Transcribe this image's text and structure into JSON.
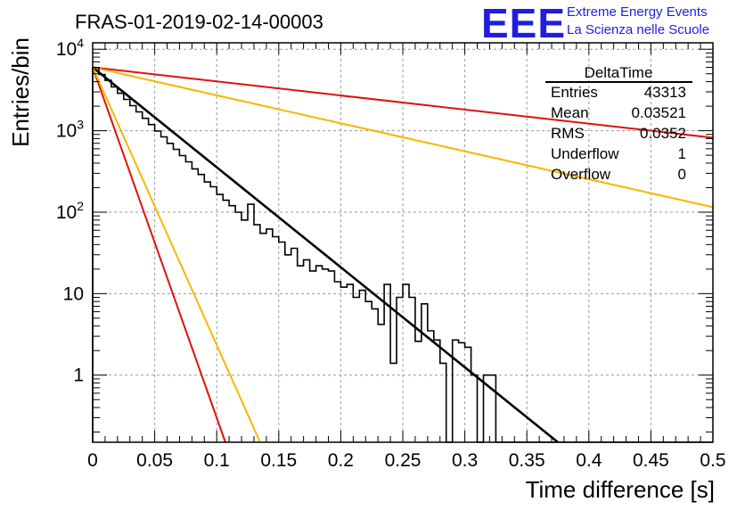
{
  "title": "FRAS-01-2019-02-14-00003",
  "logo": {
    "letters": "EEE",
    "line1": "Extreme Energy Events",
    "line2": "La Scienza nelle Scuole"
  },
  "stats_box": {
    "name": "DeltaTime",
    "rows": [
      {
        "label": "Entries",
        "value": "43313"
      },
      {
        "label": "Mean",
        "value": "0.03521"
      },
      {
        "label": "RMS",
        "value": "0.0352"
      },
      {
        "label": "Underflow",
        "value": "1"
      },
      {
        "label": "Overflow",
        "value": "0"
      }
    ]
  },
  "colors": {
    "histogram": "#000000",
    "red": "#e01010",
    "yellow": "#f5b800",
    "fit": "#000000",
    "logo": "#1f1ee0",
    "grid": "#999999"
  },
  "chart_data": {
    "type": "line",
    "title": "FRAS-01-2019-02-14-00003",
    "xlabel": "Time difference [s]",
    "ylabel": "Entries/bin",
    "xlim": [
      0,
      0.5
    ],
    "ylim": [
      0.15,
      12000
    ],
    "ylog": true,
    "grid": true,
    "legend": "top-right",
    "x_ticks": [
      0,
      0.05,
      0.1,
      0.15,
      0.2,
      0.25,
      0.3,
      0.35,
      0.4,
      0.45,
      0.5
    ],
    "x_tick_labels": [
      "0",
      "0.05",
      "0.1",
      "0.15",
      "0.2",
      "0.25",
      "0.3",
      "0.35",
      "0.4",
      "0.45",
      "0.5"
    ],
    "y_ticks": [
      1,
      10,
      100,
      1000,
      10000
    ],
    "y_tick_labels": [
      {
        "base": "1",
        "exp": ""
      },
      {
        "base": "10",
        "exp": ""
      },
      {
        "base": "10",
        "exp": "2"
      },
      {
        "base": "10",
        "exp": "3"
      },
      {
        "base": "10",
        "exp": "4"
      }
    ],
    "histogram": {
      "bin_width": 0.005,
      "x_start": 0,
      "values": [
        5950,
        4900,
        4150,
        3450,
        2880,
        2420,
        2030,
        1700,
        1420,
        1190,
        990,
        840,
        700,
        590,
        495,
        415,
        340,
        290,
        235,
        205,
        165,
        140,
        120,
        100,
        80,
        125,
        70,
        55,
        62,
        50,
        43,
        30,
        36,
        22,
        26,
        19,
        22,
        20,
        19,
        14,
        12,
        13,
        9,
        11,
        8,
        6.5,
        4.2,
        13,
        1.4,
        9,
        13,
        9,
        2.6,
        7.5,
        3.5,
        2.7,
        1.4,
        0,
        2.7,
        2.5,
        2.2,
        1.0,
        0,
        1.0,
        1.0,
        0,
        0,
        0,
        0,
        0,
        0,
        0,
        0,
        0,
        0,
        0,
        0,
        0,
        0,
        0,
        0,
        0,
        0,
        0,
        0,
        0,
        0,
        0,
        0,
        0,
        0,
        0,
        0,
        0,
        0,
        0,
        0,
        0,
        0,
        0
      ]
    },
    "series": [
      {
        "color": "#000000",
        "x": [
          0.0,
          0.375
        ],
        "y": [
          6000,
          0.15
        ]
      },
      {
        "color": "#e01010",
        "x": [
          0.0,
          0.5
        ],
        "y": [
          6000,
          820
        ]
      },
      {
        "color": "#e01010",
        "x": [
          0.0,
          0.107
        ],
        "y": [
          6000,
          0.15
        ]
      },
      {
        "color": "#f5b800",
        "x": [
          0.0,
          0.5
        ],
        "y": [
          6000,
          115
        ]
      },
      {
        "color": "#f5b800",
        "x": [
          0.0,
          0.135
        ],
        "y": [
          6000,
          0.15
        ]
      }
    ]
  }
}
